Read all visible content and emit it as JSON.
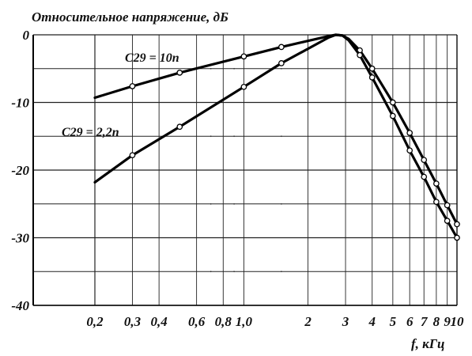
{
  "chart_data": {
    "type": "line",
    "title": "Относительное напряжение, дБ",
    "xlabel": "f, кГц",
    "ylabel": "",
    "x_scale": "log",
    "xlim": [
      0.2,
      10
    ],
    "ylim": [
      -40,
      0
    ],
    "grid": true,
    "x_ticks": [
      0.2,
      0.3,
      0.4,
      0.6,
      0.8,
      1.0,
      2,
      3,
      4,
      5,
      6,
      7,
      8,
      9,
      10
    ],
    "x_tick_labels": [
      "0,2",
      "0,3",
      "0,4",
      "0,6",
      "0,8",
      "1,0",
      "2",
      "3",
      "4",
      "5",
      "6",
      "7",
      "8",
      "9",
      "10"
    ],
    "y_ticks": [
      0,
      -10,
      -20,
      -30,
      -40
    ],
    "y_tick_labels": [
      "0",
      "-10",
      "-20",
      "-30",
      "-40"
    ],
    "series": [
      {
        "name": "C29 = 10n",
        "x": [
          0.2,
          0.3,
          0.5,
          1.0,
          1.5,
          2.5,
          2.7,
          2.9,
          3.1,
          3.5,
          4.0,
          5.0,
          6.0,
          7.0,
          8.0,
          9.0,
          10.0
        ],
        "y": [
          -9.3,
          -7.6,
          -5.6,
          -3.2,
          -1.8,
          -0.2,
          0,
          -0.1,
          -0.6,
          -2.3,
          -5.0,
          -10.0,
          -14.5,
          -18.5,
          -22.0,
          -25.2,
          -28.0
        ]
      },
      {
        "name": "C29 = 2,2n",
        "x": [
          0.2,
          0.3,
          0.5,
          1.0,
          1.5,
          2.5,
          2.7,
          2.9,
          3.1,
          3.5,
          4.0,
          5.0,
          6.0,
          7.0,
          8.0,
          9.0,
          10.0
        ],
        "y": [
          -21.8,
          -17.8,
          -13.6,
          -7.7,
          -4.2,
          -0.4,
          0,
          -0.1,
          -0.8,
          -3.0,
          -6.3,
          -12.0,
          -17.1,
          -21.0,
          -24.7,
          -27.5,
          -30.0
        ]
      }
    ],
    "series_markers_x": [
      0.3,
      0.5,
      1.0,
      1.5,
      3.5,
      4.0,
      5.0,
      6.0,
      7.0,
      8.0,
      9.0,
      10.0
    ]
  }
}
